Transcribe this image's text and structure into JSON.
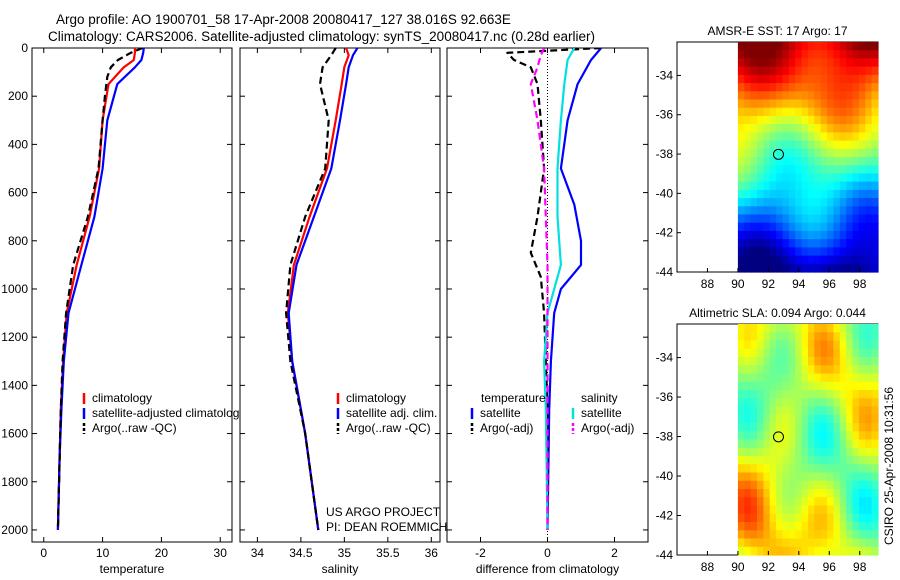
{
  "header": {
    "title_line1": "Argo profile: AO 1900701_58 17-Apr-2008 20080417_127 38.016S 92.663E",
    "title_line2": "Climatology: CARS2006. Satellite-adjusted climatology: synTS_20080417.nc (0.28d earlier)"
  },
  "footer": {
    "project": "US ARGO PROJECT",
    "pi": "PI: DEAN ROEMMICH",
    "stamp": "CSIRO 25-Apr-2008 10:31:56"
  },
  "colors": {
    "climatology": "#ff0000",
    "satellite": "#0000ff",
    "argo": "#000000",
    "salinity_satellite": "#00e0e0",
    "salinity_argo": "#ff00ff"
  },
  "chart_data": [
    {
      "id": "temperature",
      "type": "line",
      "xlabel": "temperature",
      "ylabel": "",
      "xlim": [
        -2,
        32
      ],
      "ylim": [
        2050,
        0
      ],
      "y_reversed": true,
      "xticks": [
        0,
        10,
        20,
        30
      ],
      "yticks": [
        0,
        200,
        400,
        600,
        800,
        1000,
        1200,
        1400,
        1600,
        1800,
        2000
      ],
      "legend": [
        "climatology",
        "satellite-adjusted climatology",
        "Argo(..raw -QC)"
      ],
      "series": [
        {
          "name": "climatology",
          "color": "#ff0000",
          "dash": "solid",
          "depth": [
            0,
            20,
            50,
            80,
            150,
            300,
            500,
            700,
            900,
            1100,
            1300,
            1500,
            1700,
            2000
          ],
          "values": [
            15.5,
            15.5,
            15.3,
            13.6,
            11.0,
            10.0,
            9.4,
            7.8,
            5.6,
            3.9,
            3.3,
            2.9,
            2.7,
            2.4
          ]
        },
        {
          "name": "satellite-adjusted climatology",
          "color": "#0000ff",
          "dash": "solid",
          "depth": [
            0,
            20,
            50,
            80,
            150,
            300,
            500,
            700,
            900,
            1100,
            1300,
            1500,
            1700,
            2000
          ],
          "values": [
            17.0,
            16.9,
            16.6,
            15.5,
            12.5,
            10.8,
            10.0,
            8.6,
            6.4,
            4.2,
            3.4,
            3.0,
            2.7,
            2.4
          ]
        },
        {
          "name": "Argo(..raw -QC)",
          "color": "#000000",
          "dash": "dash",
          "depth": [
            0,
            20,
            50,
            80,
            120,
            200,
            300,
            500,
            700,
            900,
            1100,
            1300,
            1500,
            1800,
            2000
          ],
          "values": [
            16.8,
            14.8,
            12.6,
            11.4,
            10.8,
            10.4,
            10.0,
            9.3,
            7.5,
            5.0,
            3.8,
            3.2,
            2.9,
            2.6,
            2.4
          ]
        }
      ]
    },
    {
      "id": "salinity",
      "type": "line",
      "xlabel": "salinity",
      "ylabel": "",
      "xlim": [
        33.8,
        36.1
      ],
      "ylim": [
        2050,
        0
      ],
      "y_reversed": true,
      "xticks": [
        34,
        34.5,
        35,
        35.5,
        36
      ],
      "legend": [
        "climatology",
        "satellite adj. clim.",
        "Argo(..raw -QC)"
      ],
      "series": [
        {
          "name": "climatology",
          "color": "#ff0000",
          "dash": "solid",
          "depth": [
            0,
            30,
            80,
            150,
            300,
            500,
            700,
            900,
            1100,
            1300,
            1600,
            2000
          ],
          "values": [
            35.02,
            35.05,
            35.0,
            34.97,
            34.9,
            34.8,
            34.6,
            34.42,
            34.35,
            34.4,
            34.55,
            34.7
          ]
        },
        {
          "name": "satellite adj. clim.",
          "color": "#0000ff",
          "dash": "solid",
          "depth": [
            0,
            30,
            80,
            150,
            300,
            500,
            700,
            900,
            1100,
            1300,
            1600,
            2000
          ],
          "values": [
            35.15,
            35.1,
            35.05,
            35.02,
            34.95,
            34.85,
            34.65,
            34.45,
            34.36,
            34.4,
            34.55,
            34.7
          ]
        },
        {
          "name": "Argo(..raw -QC)",
          "color": "#000000",
          "dash": "dash",
          "depth": [
            0,
            30,
            80,
            150,
            300,
            500,
            700,
            900,
            1100,
            1300,
            1600,
            2000
          ],
          "values": [
            34.9,
            34.85,
            34.75,
            34.72,
            34.82,
            34.78,
            34.55,
            34.38,
            34.33,
            34.38,
            34.55,
            34.7
          ]
        }
      ]
    },
    {
      "id": "difference",
      "type": "line",
      "xlabel": "difference from climatology",
      "ylabel": "",
      "xlim": [
        -3,
        3
      ],
      "ylim": [
        2050,
        0
      ],
      "y_reversed": true,
      "xticks": [
        -2,
        0,
        2
      ],
      "legend_groups": [
        {
          "title": "temperature",
          "items": [
            "satellite",
            "Argo(-adj)"
          ]
        },
        {
          "title": "salinity",
          "items": [
            "satellite",
            "Argo(-adj)"
          ]
        }
      ],
      "series": [
        {
          "name": "temperature satellite",
          "color": "#0000ff",
          "dash": "solid",
          "depth": [
            0,
            50,
            150,
            300,
            500,
            650,
            800,
            900,
            1000,
            1100,
            1300,
            1500,
            2000
          ],
          "values": [
            1.6,
            1.3,
            0.9,
            0.6,
            0.4,
            0.8,
            1.0,
            1.0,
            0.4,
            0.2,
            0.1,
            0.05,
            0.0
          ]
        },
        {
          "name": "temperature Argo(-adj)",
          "color": "#000000",
          "dash": "dash",
          "depth": [
            0,
            20,
            50,
            80,
            150,
            300,
            500,
            700,
            850,
            950,
            1100,
            1300,
            1500,
            2000
          ],
          "values": [
            1.6,
            -1.2,
            -1.0,
            -0.5,
            -0.3,
            -0.2,
            -0.1,
            -0.3,
            -0.5,
            -0.2,
            -0.1,
            -0.05,
            0.0,
            0.0
          ]
        },
        {
          "name": "salinity satellite",
          "color": "#00e0e0",
          "dash": "solid",
          "depth": [
            0,
            50,
            150,
            300,
            500,
            700,
            900,
            1000,
            1100,
            1300,
            1500,
            2000
          ],
          "values": [
            0.8,
            0.6,
            0.5,
            0.4,
            0.3,
            0.3,
            0.4,
            0.2,
            0.0,
            -0.1,
            -0.05,
            0.0
          ]
        },
        {
          "name": "salinity Argo(-adj)",
          "color": "#ff00ff",
          "dash": "dash",
          "depth": [
            0,
            30,
            80,
            150,
            300,
            500,
            700,
            900,
            1100,
            1300,
            1600,
            2000
          ],
          "values": [
            -0.1,
            -0.2,
            -0.3,
            -0.5,
            -0.3,
            -0.1,
            -0.05,
            0.0,
            0.0,
            0.0,
            0.0,
            0.0
          ]
        }
      ]
    },
    {
      "id": "sst-map",
      "type": "heatmap",
      "title": "AMSR-E SST: 17 Argo: 17",
      "xlim": [
        86,
        99.2
      ],
      "ylim": [
        -44,
        -32.3
      ],
      "xticks": [
        88,
        90,
        92,
        94,
        96,
        98
      ],
      "yticks": [
        -34,
        -36,
        -38,
        -40,
        -42,
        -44
      ],
      "marker": {
        "lon": 92.663,
        "lat": -38.016
      },
      "colorscale": "jet",
      "data_extent_lon": [
        90,
        99.2
      ]
    },
    {
      "id": "sla-map",
      "type": "heatmap",
      "title": "Altimetric SLA: 0.094 Argo: 0.044",
      "xlim": [
        86,
        99.2
      ],
      "ylim": [
        -44,
        -32.3
      ],
      "xticks": [
        88,
        90,
        92,
        94,
        96,
        98
      ],
      "yticks": [
        -34,
        -36,
        -38,
        -40,
        -42,
        -44
      ],
      "marker": {
        "lon": 92.663,
        "lat": -38.016
      },
      "colorscale": "jet",
      "data_extent_lon": [
        90,
        99.2
      ]
    }
  ]
}
